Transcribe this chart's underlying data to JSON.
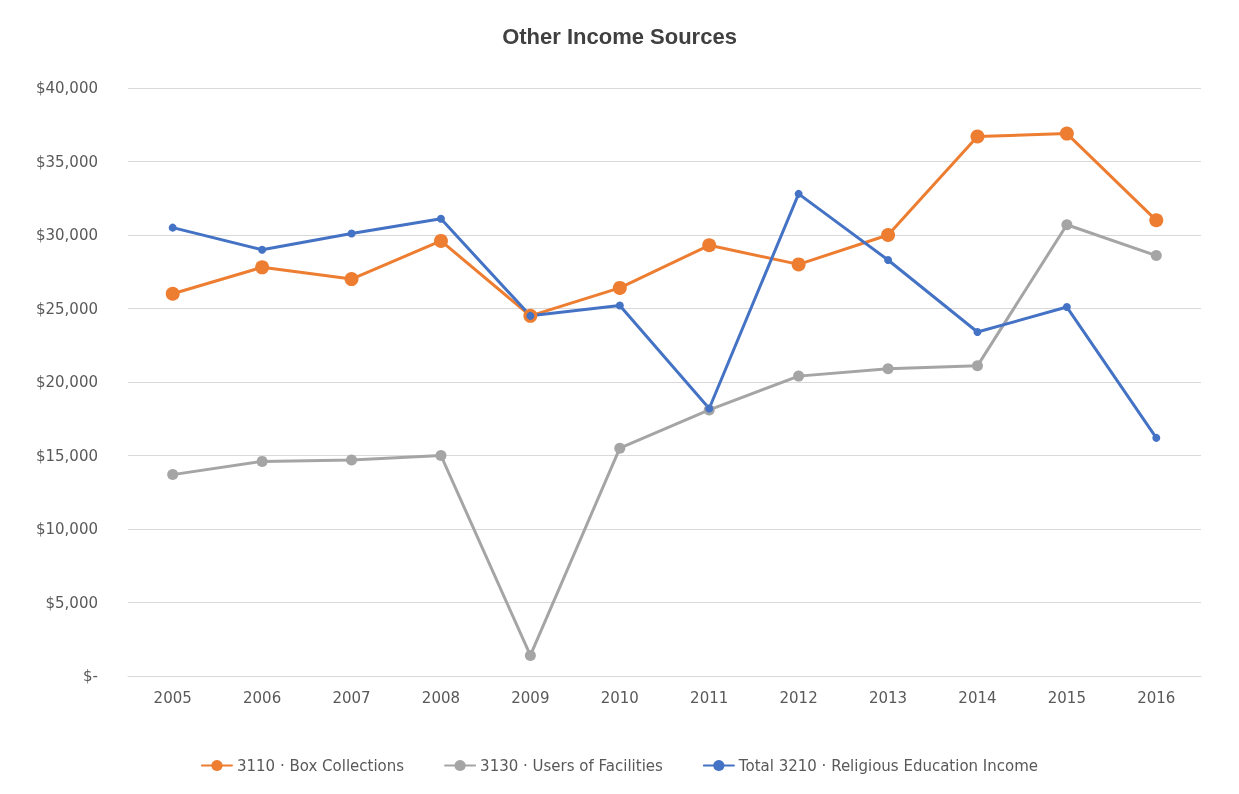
{
  "chart_data": {
    "type": "line",
    "title": "Other Income Sources",
    "categories": [
      "2005",
      "2006",
      "2007",
      "2008",
      "2009",
      "2010",
      "2011",
      "2012",
      "2013",
      "2014",
      "2015",
      "2016"
    ],
    "series": [
      {
        "name": "3110 · Box Collections",
        "color": "#ed7d31",
        "values": [
          26000,
          27800,
          27000,
          29600,
          24500,
          26400,
          29300,
          28000,
          30000,
          36700,
          36900,
          31000
        ]
      },
      {
        "name": "3130 · Users of Facilities",
        "color": "#a5a5a5",
        "values": [
          13700,
          14600,
          14700,
          15000,
          1400,
          15500,
          18100,
          20400,
          20900,
          21100,
          30700,
          28600
        ]
      },
      {
        "name": "Total 3210 · Religious Education Income",
        "color": "#4472c4",
        "values": [
          30500,
          29000,
          30100,
          31100,
          24500,
          25200,
          18200,
          32800,
          28300,
          23400,
          25100,
          16200
        ]
      }
    ],
    "ylim": [
      0,
      40000
    ],
    "yticks": [
      {
        "value": 0,
        "label": "$-"
      },
      {
        "value": 5000,
        "label": "$5,000"
      },
      {
        "value": 10000,
        "label": "$10,000"
      },
      {
        "value": 15000,
        "label": "$15,000"
      },
      {
        "value": 20000,
        "label": "$20,000"
      },
      {
        "value": 25000,
        "label": "$25,000"
      },
      {
        "value": 30000,
        "label": "$30,000"
      },
      {
        "value": 35000,
        "label": "$35,000"
      },
      {
        "value": 40000,
        "label": "$40,000"
      }
    ],
    "grid": "y",
    "legend": "bottom",
    "marker": "circle",
    "line_style": "solid"
  }
}
